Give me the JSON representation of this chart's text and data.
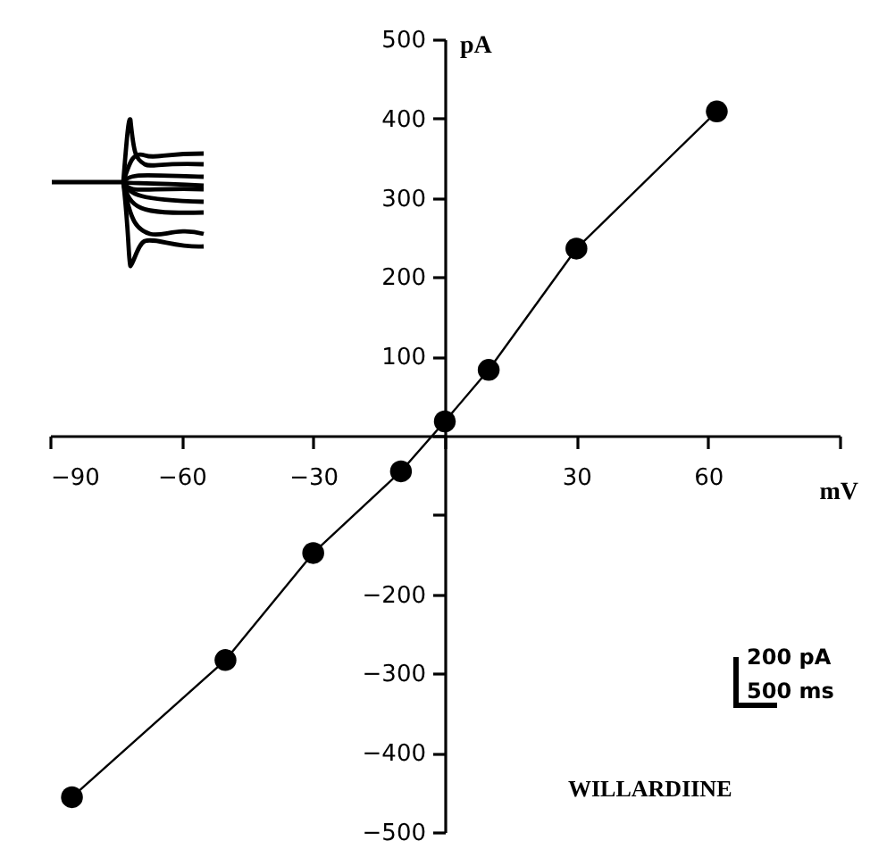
{
  "chart_data": {
    "type": "line",
    "xlabel": "mV",
    "ylabel": "pA",
    "x": [
      -85,
      -50,
      -30,
      -10,
      0,
      10,
      30,
      62
    ],
    "series": [
      {
        "color": "#000000",
        "values": [
          -456,
          -283,
          -148,
          -45,
          18,
          83,
          236,
          409
        ]
      }
    ],
    "xlim": [
      -90,
      90
    ],
    "xticks": [
      -90,
      -60,
      -30,
      {
        "value": 0,
        "label": null
      },
      30,
      60,
      {
        "value": 90,
        "label": null
      }
    ],
    "ylim": [
      -500,
      500
    ],
    "yticks": [
      -500,
      -400,
      -300,
      -200,
      {
        "value": -100,
        "label": null
      },
      {
        "value": 0,
        "label": null
      },
      100,
      200,
      300,
      400,
      500
    ],
    "grid": false,
    "marker": "circle",
    "line_style": "solid",
    "annotations": [
      "WILLARDIINE",
      "200 pA",
      "500 ms"
    ]
  }
}
